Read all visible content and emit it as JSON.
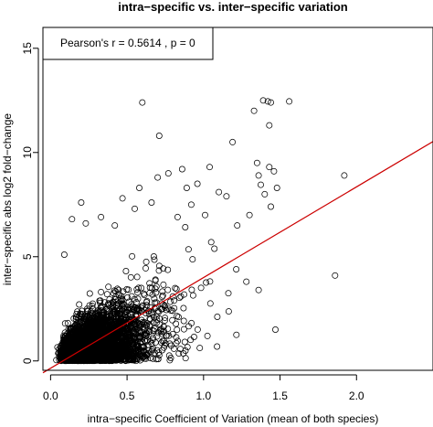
{
  "chart_data": {
    "type": "scatter",
    "title": "intra−specific vs. inter−specific variation",
    "xlabel": "intra−specific Coefficient of Variation (mean of both species)",
    "ylabel": "inter−specific abs log2 fold−change",
    "xlim": [
      -0.05,
      2.5
    ],
    "ylim": [
      -0.45,
      16
    ],
    "x_ticks": [
      0.0,
      0.5,
      1.0,
      1.5,
      2.0
    ],
    "x_tick_labels": [
      "0.0",
      "0.5",
      "1.0",
      "1.5",
      "2.0"
    ],
    "y_ticks": [
      0,
      5,
      10,
      15
    ],
    "y_tick_labels": [
      "0",
      "5",
      "10",
      "15"
    ],
    "legend": {
      "text": "Pearson's r =  0.5614   , p =  0",
      "position": "top-left"
    },
    "grid": false,
    "point_color": "#000000",
    "regression_line": {
      "color": "#cc0000",
      "intercept": -0.35,
      "slope": 4.35
    },
    "points": [
      [
        0.6,
        12.4
      ],
      [
        1.39,
        12.5
      ],
      [
        1.42,
        12.45
      ],
      [
        1.44,
        12.4
      ],
      [
        1.56,
        12.45
      ],
      [
        1.33,
        12.0
      ],
      [
        1.43,
        11.3
      ],
      [
        0.71,
        10.8
      ],
      [
        1.19,
        10.5
      ],
      [
        1.92,
        8.9
      ],
      [
        1.35,
        9.5
      ],
      [
        1.43,
        9.3
      ],
      [
        1.46,
        9.1
      ],
      [
        1.36,
        8.9
      ],
      [
        1.48,
        8.3
      ],
      [
        1.4,
        8.0
      ],
      [
        1.3,
        7.0
      ],
      [
        1.44,
        7.4
      ],
      [
        1.86,
        4.1
      ],
      [
        1.47,
        1.5
      ],
      [
        1.36,
        3.4
      ],
      [
        1.28,
        3.8
      ],
      [
        0.42,
        6.5
      ],
      [
        0.55,
        7.3
      ],
      [
        0.86,
        9.2
      ],
      [
        0.96,
        8.5
      ],
      [
        1.04,
        9.3
      ],
      [
        0.14,
        6.8
      ],
      [
        0.23,
        6.6
      ],
      [
        0.09,
        5.1
      ],
      [
        0.92,
        7.5
      ],
      [
        1.1,
        8.1
      ],
      [
        1.22,
        6.5
      ],
      [
        0.7,
        8.8
      ],
      [
        0.83,
        6.9
      ],
      [
        0.2,
        7.6
      ],
      [
        0.33,
        6.9
      ],
      [
        1.05,
        5.7
      ],
      [
        1.15,
        7.9
      ],
      [
        0.77,
        9.0
      ],
      [
        0.58,
        8.3
      ],
      [
        0.47,
        7.8
      ],
      [
        0.66,
        7.6
      ],
      [
        0.89,
        8.3
      ],
      [
        1.01,
        7.0
      ]
    ]
  }
}
